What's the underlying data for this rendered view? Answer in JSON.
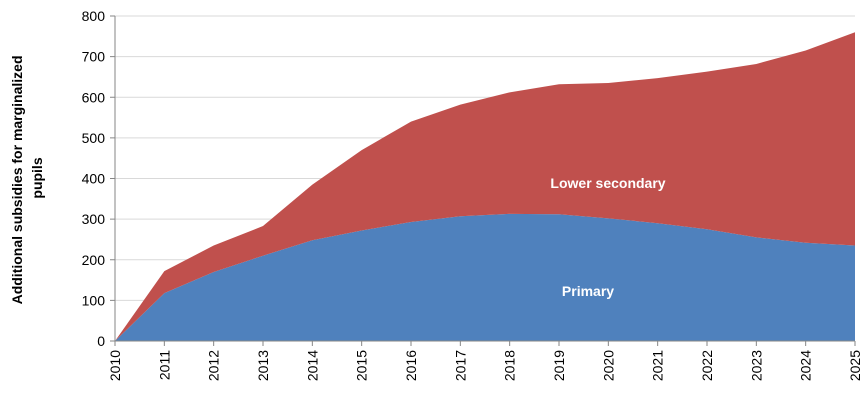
{
  "chart_data": {
    "type": "stacked_area",
    "y_label": [
      "Additional subsidies for marginalized",
      "pupils"
    ],
    "x": [
      2010,
      2011,
      2012,
      2013,
      2014,
      2015,
      2016,
      2017,
      2018,
      2019,
      2020,
      2021,
      2022,
      2023,
      2024,
      2025
    ],
    "xlim": [
      2010,
      2025
    ],
    "xticks": [
      2010,
      2011,
      2012,
      2013,
      2014,
      2015,
      2016,
      2017,
      2018,
      2019,
      2020,
      2021,
      2022,
      2023,
      2024,
      2025
    ],
    "ylim": [
      0,
      800
    ],
    "yticks": [
      0,
      100,
      200,
      300,
      400,
      500,
      600,
      700,
      800
    ],
    "grid": true,
    "series": [
      {
        "name": "Primary",
        "color": "#4f81bd",
        "values": [
          0,
          118,
          170,
          210,
          248,
          272,
          293,
          307,
          313,
          312,
          302,
          290,
          275,
          255,
          242,
          235
        ]
      },
      {
        "name": "Lower secondary",
        "color": "#c0504d",
        "values": [
          0,
          54,
          65,
          73,
          137,
          198,
          247,
          275,
          299,
          320,
          333,
          357,
          388,
          427,
          473,
          525
        ]
      }
    ]
  }
}
